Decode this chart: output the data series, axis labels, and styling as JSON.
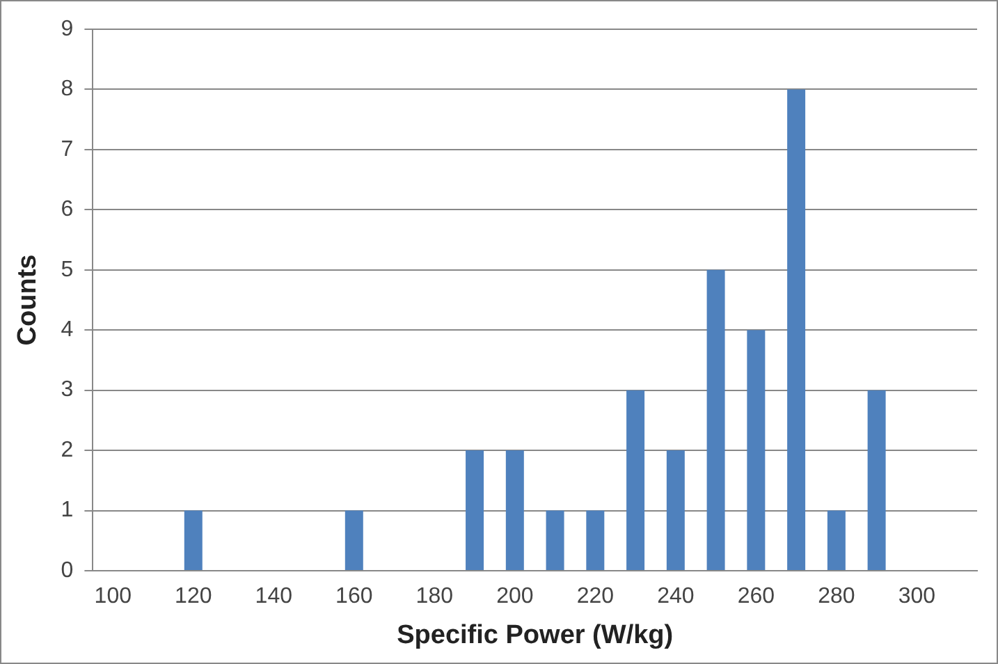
{
  "chart_data": {
    "type": "bar",
    "xlabel": "Specific Power (W/kg)",
    "ylabel": "Counts",
    "categories": [
      "100",
      null,
      "120",
      null,
      "140",
      null,
      "160",
      null,
      "180",
      null,
      "200",
      null,
      "220",
      null,
      "240",
      null,
      "260",
      null,
      "280",
      null,
      "300",
      null
    ],
    "values": [
      0,
      0,
      1,
      0,
      0,
      0,
      1,
      0,
      0,
      2,
      2,
      1,
      1,
      3,
      2,
      5,
      4,
      8,
      1,
      3,
      0,
      0
    ],
    "color": "#4f81bd",
    "ylim": [
      0,
      9
    ],
    "yticks": [
      0,
      1,
      2,
      3,
      4,
      5,
      6,
      7,
      8,
      9
    ],
    "grid": "y",
    "legend": false
  }
}
